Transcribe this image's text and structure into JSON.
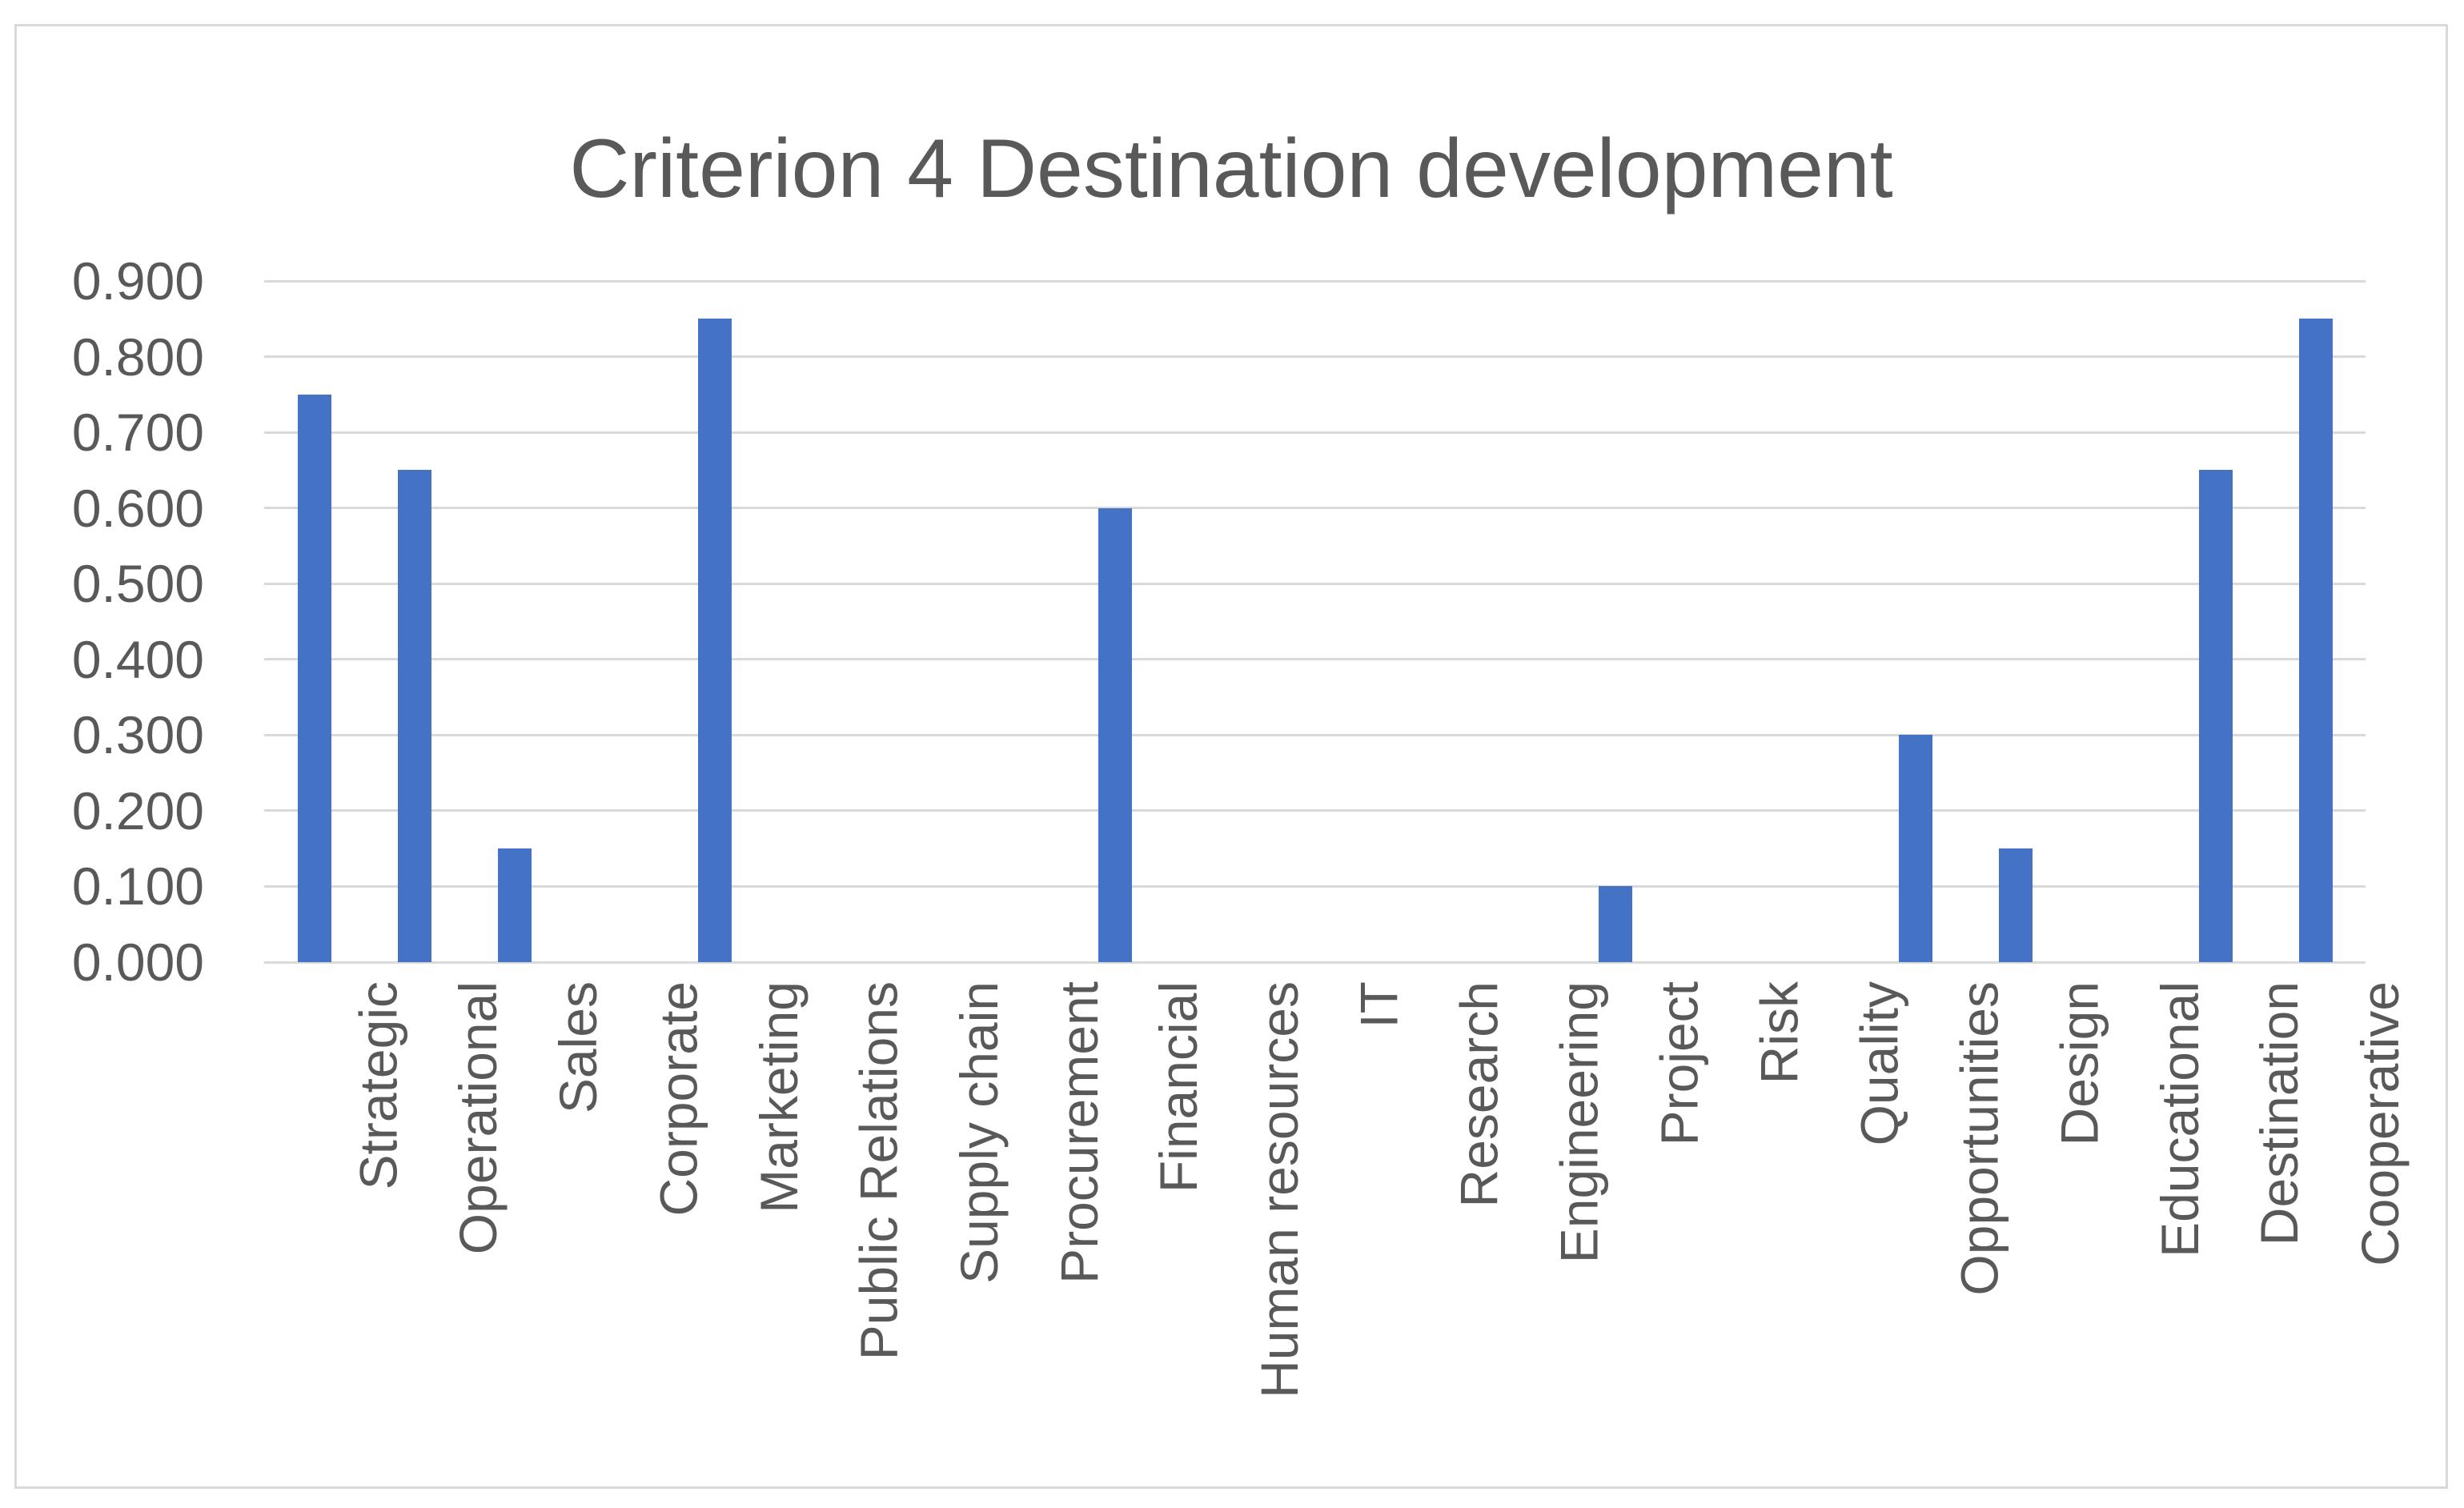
{
  "chart": {
    "title": "Criterion 4 Destination development",
    "colors": {
      "bar": "#4472C4",
      "gridline": "#D9D9D9",
      "text": "#595959",
      "frame_border": "#D9D9D9",
      "background": "#FFFFFF"
    }
  },
  "chart_data": {
    "type": "bar",
    "title": "Criterion 4 Destination development",
    "xlabel": "",
    "ylabel": "",
    "categories": [
      "Strategic",
      "Operational",
      "Sales",
      "Corporate",
      "Marketing",
      "Public Relations",
      "Supply chain",
      "Procurement",
      "Financial",
      "Human resources",
      "IT",
      "Research",
      "Engineering",
      "Project",
      "Risk",
      "Quality",
      "Opportunities",
      "Design",
      "Educational",
      "Destination",
      "Cooperative"
    ],
    "values": [
      0.75,
      0.65,
      0.15,
      0.0,
      0.85,
      0.0,
      0.0,
      0.0,
      0.6,
      0.0,
      0.0,
      0.0,
      0.0,
      0.1,
      0.0,
      0.0,
      0.3,
      0.15,
      0.0,
      0.65,
      0.85
    ],
    "ylim": [
      0.0,
      0.9
    ],
    "ytick_step": 0.1,
    "ytick_labels": [
      "0.000",
      "0.100",
      "0.200",
      "0.300",
      "0.400",
      "0.500",
      "0.600",
      "0.700",
      "0.800",
      "0.900"
    ],
    "grid": true,
    "legend": false,
    "x_labels_rotated_degrees": -90,
    "single_series": true
  }
}
